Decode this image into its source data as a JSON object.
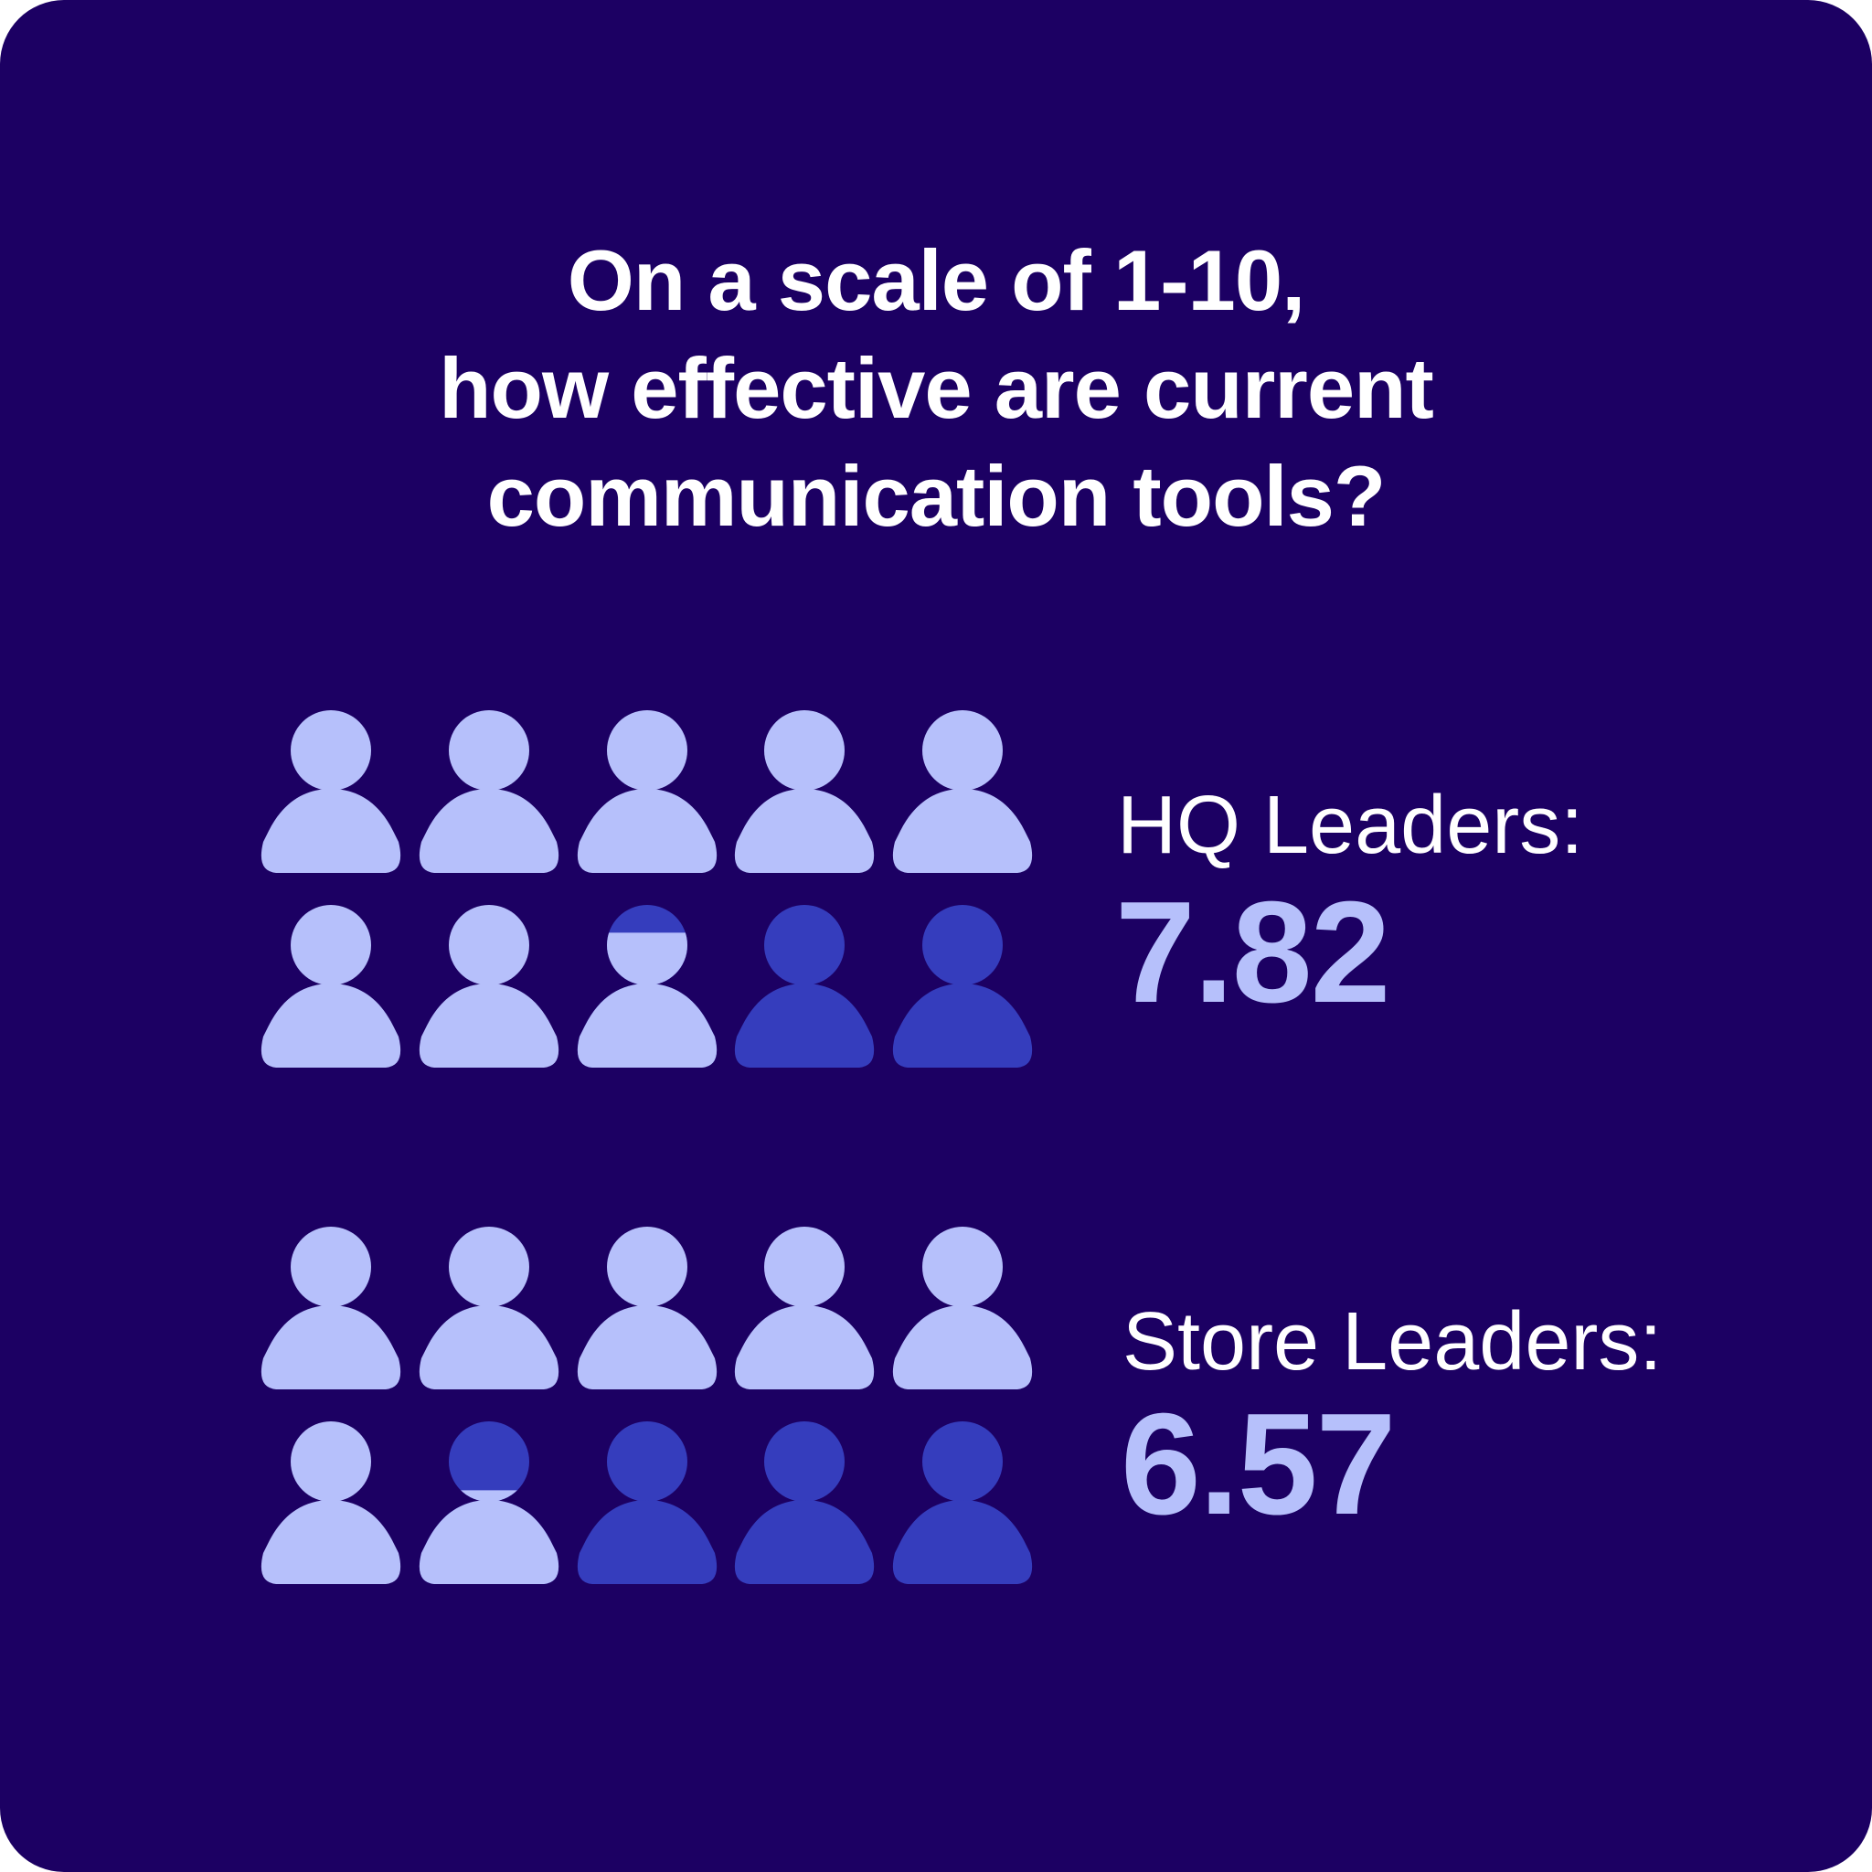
{
  "colors": {
    "background": "#1c0063",
    "title_text": "#ffffff",
    "label_text": "#ffffff",
    "value_text": "#b6c0fb",
    "filled_icon": "#b6c0fb",
    "empty_icon": "#353dbd"
  },
  "icon": "person-icon",
  "chart_data": {
    "type": "pictograph",
    "title_lines": [
      "On a scale of 1-10,",
      "how effective are current",
      "communication tools?"
    ],
    "scale": {
      "min": 0,
      "max": 10,
      "icons_per_unit": 1
    },
    "series": [
      {
        "label": "HQ Leaders:",
        "value": 7.82,
        "display_value": "7.82"
      },
      {
        "label": "Store Leaders:",
        "value": 6.57,
        "display_value": "6.57"
      }
    ]
  }
}
